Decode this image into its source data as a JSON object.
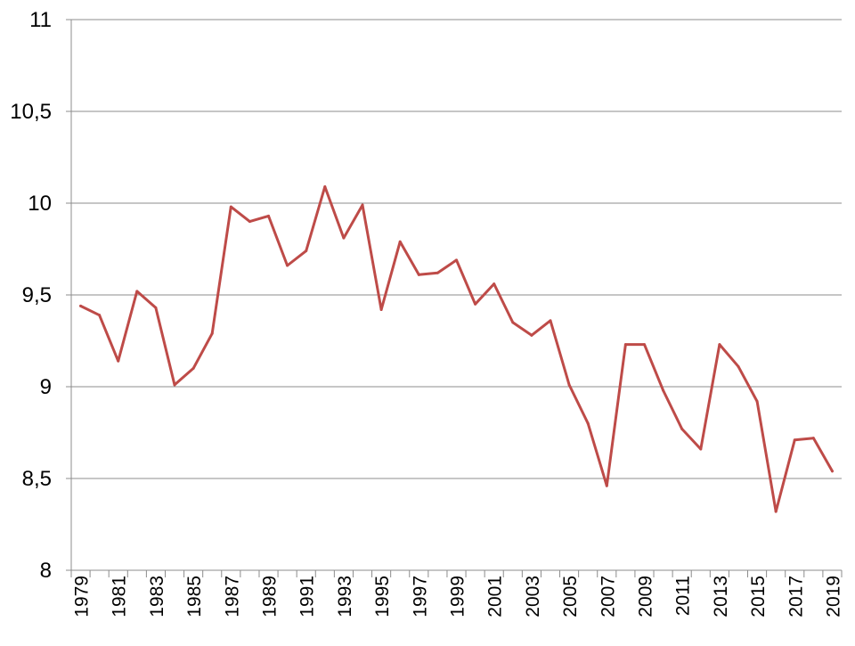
{
  "chart_data": {
    "type": "line",
    "title": "",
    "xlabel": "",
    "ylabel": "",
    "ylim": [
      8,
      11
    ],
    "yticks": [
      "8",
      "8,5",
      "9",
      "9,5",
      "10",
      "10,5",
      "11"
    ],
    "grid": true,
    "legend": "none",
    "x": [
      1979,
      1980,
      1981,
      1982,
      1983,
      1984,
      1985,
      1986,
      1987,
      1988,
      1989,
      1990,
      1991,
      1992,
      1993,
      1994,
      1995,
      1996,
      1997,
      1998,
      1999,
      2000,
      2001,
      2002,
      2003,
      2004,
      2005,
      2006,
      2007,
      2008,
      2009,
      2010,
      2011,
      2012,
      2013,
      2014,
      2015,
      2016,
      2017,
      2018,
      2019
    ],
    "xtick_labels": [
      "1979",
      "1981",
      "1983",
      "1985",
      "1987",
      "1989",
      "1991",
      "1993",
      "1995",
      "1997",
      "1999",
      "2001",
      "2003",
      "2005",
      "2007",
      "2009",
      "2011",
      "2013",
      "2015",
      "2017",
      "2019"
    ],
    "series": [
      {
        "color": "#be4b48",
        "values": [
          9.44,
          9.39,
          9.14,
          9.52,
          9.43,
          9.01,
          9.1,
          9.29,
          9.98,
          9.9,
          9.93,
          9.66,
          9.74,
          10.09,
          9.81,
          9.99,
          9.42,
          9.79,
          9.61,
          9.62,
          9.69,
          9.45,
          9.56,
          9.35,
          9.28,
          9.36,
          9.01,
          8.8,
          8.46,
          9.23,
          9.23,
          8.98,
          8.77,
          8.66,
          9.23,
          9.11,
          8.92,
          8.32,
          8.71,
          8.72,
          8.54
        ]
      }
    ]
  }
}
